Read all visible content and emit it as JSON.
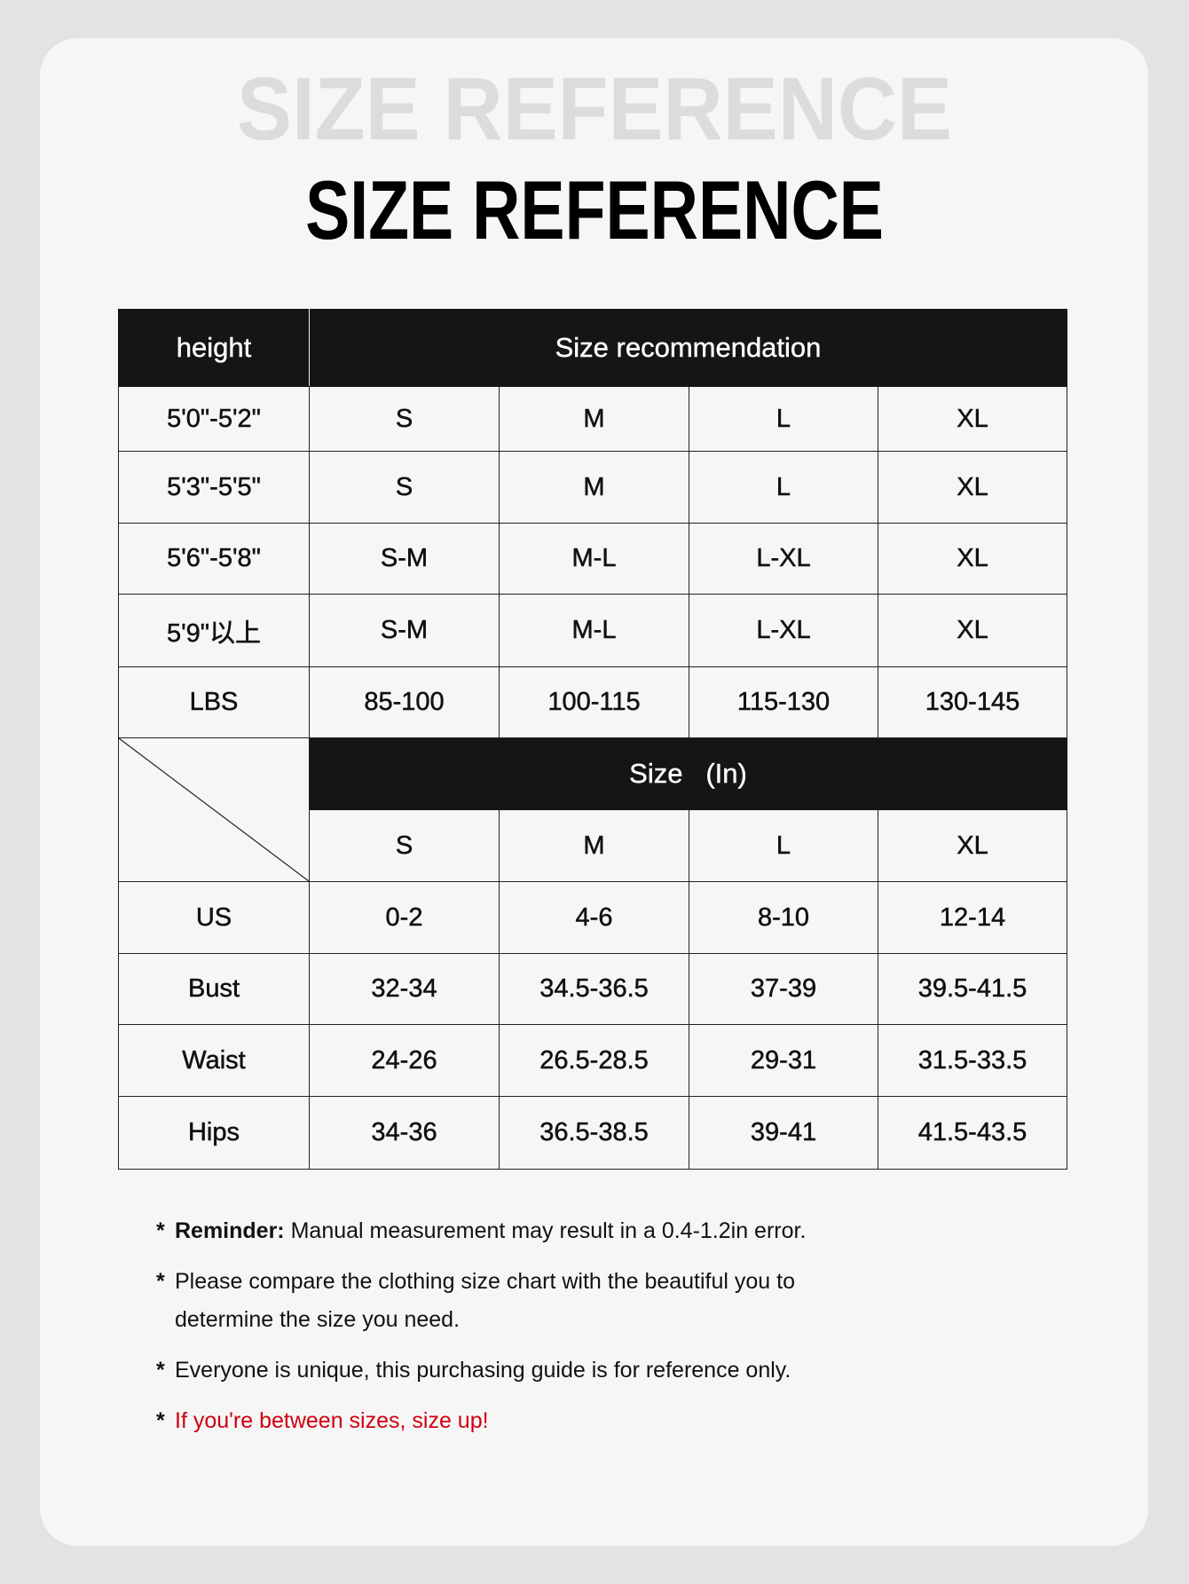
{
  "title": "SIZE REFERENCE",
  "title_watermark": "SIZE REFERENCE",
  "colors": {
    "header_bg": "#151515",
    "highlight_text": "#d0000f",
    "card_bg": "#f6f6f6",
    "page_bg": "#e3e3e3"
  },
  "recommendation": {
    "header_left": "height",
    "header_right": "Size recommendation",
    "rows": [
      {
        "label": "5'0\"-5'2\"",
        "cells": [
          "S",
          "M",
          "L",
          "XL"
        ]
      },
      {
        "label": "5'3\"-5'5\"",
        "cells": [
          "S",
          "M",
          "L",
          "XL"
        ]
      },
      {
        "label": "5'6\"-5'8\"",
        "cells": [
          "S-M",
          "M-L",
          "L-XL",
          "XL"
        ]
      },
      {
        "label": "5'9\"以上",
        "cells": [
          "S-M",
          "M-L",
          "L-XL",
          "XL"
        ]
      },
      {
        "label": "LBS",
        "cells": [
          "85-100",
          "100-115",
          "115-130",
          "130-145"
        ]
      }
    ]
  },
  "measurements": {
    "header": "Size   (In)",
    "sizes": [
      "S",
      "M",
      "L",
      "XL"
    ],
    "rows": [
      {
        "label": "US",
        "cells": [
          "0-2",
          "4-6",
          "8-10",
          "12-14"
        ]
      },
      {
        "label": "Bust",
        "cells": [
          "32-34",
          "34.5-36.5",
          "37-39",
          "39.5-41.5"
        ]
      },
      {
        "label": "Waist",
        "cells": [
          "24-26",
          "26.5-28.5",
          "29-31",
          "31.5-33.5"
        ]
      },
      {
        "label": "Hips",
        "cells": [
          "34-36",
          "36.5-38.5",
          "39-41",
          "41.5-43.5"
        ]
      }
    ]
  },
  "notes": {
    "bullet": "*",
    "reminder_label": "Reminder:",
    "reminder_text": " Manual measurement may result in a 0.4-1.2in error.",
    "note2": "Please compare the clothing size chart with the beautiful you to determine the size you need.",
    "note3": "Everyone is unique, this purchasing guide is for reference only.",
    "note4": "If you're between sizes, size up!"
  }
}
